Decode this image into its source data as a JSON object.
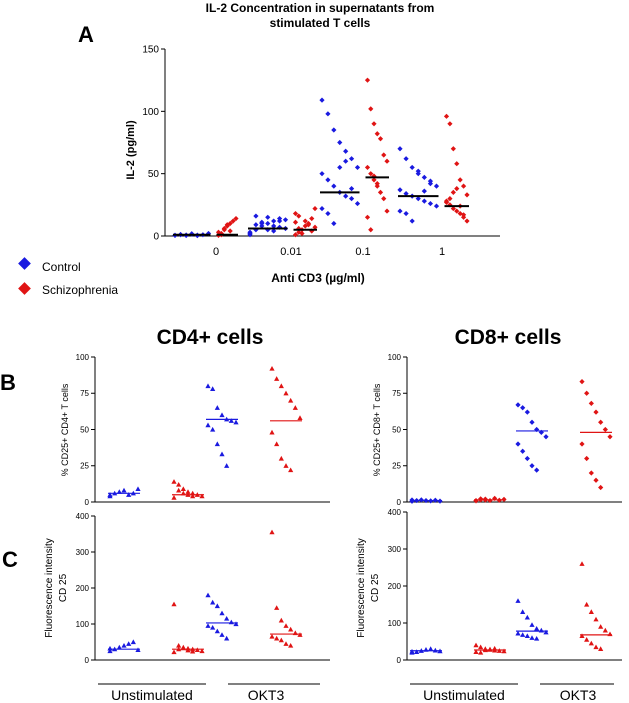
{
  "colors": {
    "control": "#1a1ae0",
    "schizophrenia": "#e01414",
    "axis": "#000000",
    "median": "#000000"
  },
  "panel_letters": {
    "a": "A",
    "b": "B",
    "c": "C"
  },
  "column_titles": {
    "cd4": "CD4+ cells",
    "cd8": "CD8+ cells"
  },
  "legend": {
    "control": "Control",
    "schizophrenia": "Schizophrenia"
  },
  "bottom_groups": {
    "unstim": "Unstimulated",
    "okt3": "OKT3"
  },
  "chart_data": [
    {
      "id": "A",
      "type": "scatter",
      "title": [
        "IL-2 Concentration in supernatants from",
        "stimulated T cells"
      ],
      "xlabel": "Anti CD3 (µg/ml)",
      "ylabel": "IL-2 (pg/ml)",
      "ylim": [
        0,
        150
      ],
      "yticks": [
        0,
        50,
        100,
        150
      ],
      "categories": [
        "0",
        "0.01",
        "0.1",
        "1"
      ],
      "series": [
        {
          "name": "Control",
          "medians": [
            1,
            6,
            35,
            32
          ],
          "values": [
            [
              0.5,
              1,
              0.8,
              1.5,
              0.3,
              1,
              2,
              0.6,
              1.2,
              0.4,
              1.8,
              0.7
            ],
            [
              2,
              5,
              8,
              10,
              12,
              14,
              6,
              3,
              9,
              11,
              15,
              4,
              7,
              13,
              1,
              16,
              10,
              5,
              8,
              12
            ],
            [
              109,
              98,
              85,
              75,
              68,
              62,
              55,
              50,
              45,
              40,
              35,
              32,
              30,
              26,
              22,
              18,
              10,
              55,
              60,
              38
            ],
            [
              70,
              62,
              55,
              50,
              47,
              44,
              40,
              37,
              34,
              32,
              30,
              28,
              26,
              24,
              20,
              18,
              12,
              52,
              36,
              42
            ]
          ]
        },
        {
          "name": "Schizophrenia",
          "medians": [
            1,
            5,
            47,
            24
          ],
          "values": [
            [
              0.5,
              2,
              5,
              8,
              10,
              12,
              14,
              3,
              1,
              6,
              9,
              4
            ],
            [
              1,
              3,
              5,
              8,
              10,
              14,
              22,
              18,
              6,
              2,
              12,
              9,
              4,
              7,
              11,
              16
            ],
            [
              125,
              102,
              90,
              82,
              78,
              65,
              60,
              55,
              50,
              45,
              40,
              35,
              30,
              20,
              15,
              5,
              48,
              42
            ],
            [
              96,
              90,
              70,
              58,
              45,
              40,
              33,
              28,
              25,
              22,
              20,
              18,
              15,
              12,
              27,
              30,
              35,
              38,
              24,
              17
            ]
          ]
        }
      ]
    },
    {
      "id": "B-CD4",
      "type": "scatter",
      "ylabel": "% CD25+ CD4+ T cells",
      "ylim": [
        0,
        100
      ],
      "yticks": [
        0,
        25,
        50,
        75,
        100
      ],
      "categories": [
        "Unstimulated",
        "Unstimulated",
        "OKT3",
        "OKT3"
      ],
      "series": [
        {
          "name": "Control",
          "medians": [
            6,
            57
          ],
          "values": [
            [
              5,
              6,
              7,
              8,
              5,
              6,
              9,
              4
            ],
            [
              80,
              78,
              65,
              60,
              57,
              56,
              55,
              53,
              50,
              40,
              33,
              25
            ]
          ]
        },
        {
          "name": "Schizophrenia",
          "medians": [
            5,
            56
          ],
          "values": [
            [
              14,
              12,
              9,
              7,
              6,
              5,
              4,
              3,
              8,
              6,
              5,
              4
            ],
            [
              92,
              85,
              80,
              75,
              70,
              65,
              58,
              48,
              40,
              30,
              25,
              22
            ]
          ]
        }
      ]
    },
    {
      "id": "B-CD8",
      "type": "scatter",
      "ylabel": "% CD25+ CD8+ T cells",
      "ylim": [
        0,
        100
      ],
      "yticks": [
        0,
        25,
        50,
        75,
        100
      ],
      "categories": [
        "Unstimulated",
        "Unstimulated",
        "OKT3",
        "OKT3"
      ],
      "series": [
        {
          "name": "Control",
          "medians": [
            1,
            49
          ],
          "values": [
            [
              0.5,
              1,
              1.5,
              1,
              0.8,
              1.2,
              0.6,
              1.4
            ],
            [
              67,
              65,
              62,
              55,
              50,
              48,
              45,
              40,
              35,
              30,
              25,
              22
            ]
          ]
        },
        {
          "name": "Schizophrenia",
          "medians": [
            1.5,
            48
          ],
          "values": [
            [
              1,
              1.5,
              2,
              1,
              2.5,
              1.2,
              1.8,
              0.8,
              2.2,
              1.4
            ],
            [
              83,
              75,
              68,
              62,
              55,
              50,
              45,
              40,
              30,
              20,
              15,
              10
            ]
          ]
        }
      ]
    },
    {
      "id": "C-CD4",
      "type": "scatter",
      "ylabel": [
        "Fluorescence intensity",
        "CD 25"
      ],
      "ylim": [
        0,
        400
      ],
      "yticks": [
        0,
        100,
        200,
        300,
        400
      ],
      "categories": [
        "Unstimulated",
        "Unstimulated",
        "OKT3",
        "OKT3"
      ],
      "series": [
        {
          "name": "Control",
          "medians": [
            30,
            103
          ],
          "values": [
            [
              25,
              30,
              35,
              40,
              45,
              50,
              28,
              32
            ],
            [
              180,
              160,
              150,
              130,
              115,
              105,
              100,
              95,
              90,
              80,
              70,
              60
            ]
          ]
        },
        {
          "name": "Schizophrenia",
          "medians": [
            30,
            72
          ],
          "values": [
            [
              155,
              40,
              35,
              32,
              30,
              28,
              25,
              22,
              30,
              33,
              27,
              24
            ],
            [
              355,
              145,
              110,
              95,
              85,
              75,
              70,
              65,
              60,
              55,
              45,
              40
            ]
          ]
        }
      ]
    },
    {
      "id": "C-CD8",
      "type": "scatter",
      "ylabel": [
        "Fluorescence intensity",
        "CD 25"
      ],
      "ylim": [
        0,
        400
      ],
      "yticks": [
        0,
        100,
        200,
        300,
        400
      ],
      "categories": [
        "Unstimulated",
        "Unstimulated",
        "OKT3",
        "OKT3"
      ],
      "series": [
        {
          "name": "Control",
          "medians": [
            25,
            78
          ],
          "values": [
            [
              20,
              22,
              25,
              28,
              30,
              26,
              24,
              23
            ],
            [
              160,
              130,
              115,
              95,
              85,
              80,
              75,
              72,
              68,
              65,
              60,
              58
            ]
          ]
        },
        {
          "name": "Schizophrenia",
          "medians": [
            27,
            68
          ],
          "values": [
            [
              40,
              35,
              30,
              28,
              26,
              25,
              24,
              22,
              20,
              27,
              29,
              31
            ],
            [
              260,
              150,
              130,
              110,
              90,
              80,
              70,
              65,
              55,
              45,
              35,
              30
            ]
          ]
        }
      ]
    }
  ]
}
